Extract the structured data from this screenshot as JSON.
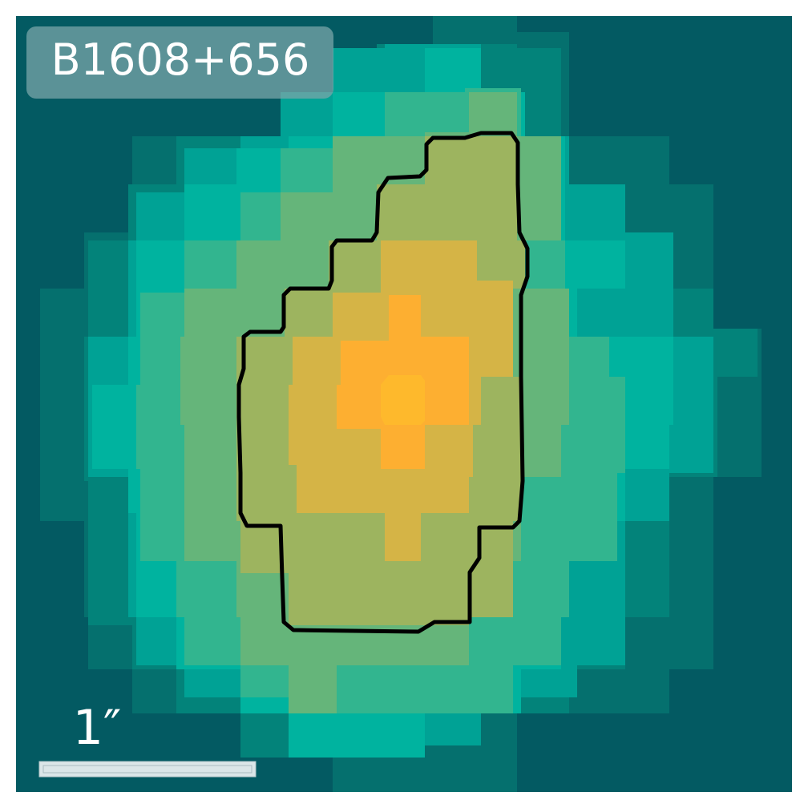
{
  "title": "B1608+656",
  "scale_bar": {
    "label": "1″"
  },
  "colors": {
    "background": "#035a62",
    "level_1": "#05706e",
    "level_2": "#03837a",
    "level_3": "#00a295",
    "level_4": "#00b39f",
    "level_5": "#32b58f",
    "level_6": "#65b57a",
    "level_7": "#9db45f",
    "level_8": "#d5b446",
    "level_9": "#fdaf31",
    "level_10": "#feb92c",
    "contour": "#000000",
    "label_box": "#7aa6a9",
    "scale_bar": "#dbe6e8"
  }
}
